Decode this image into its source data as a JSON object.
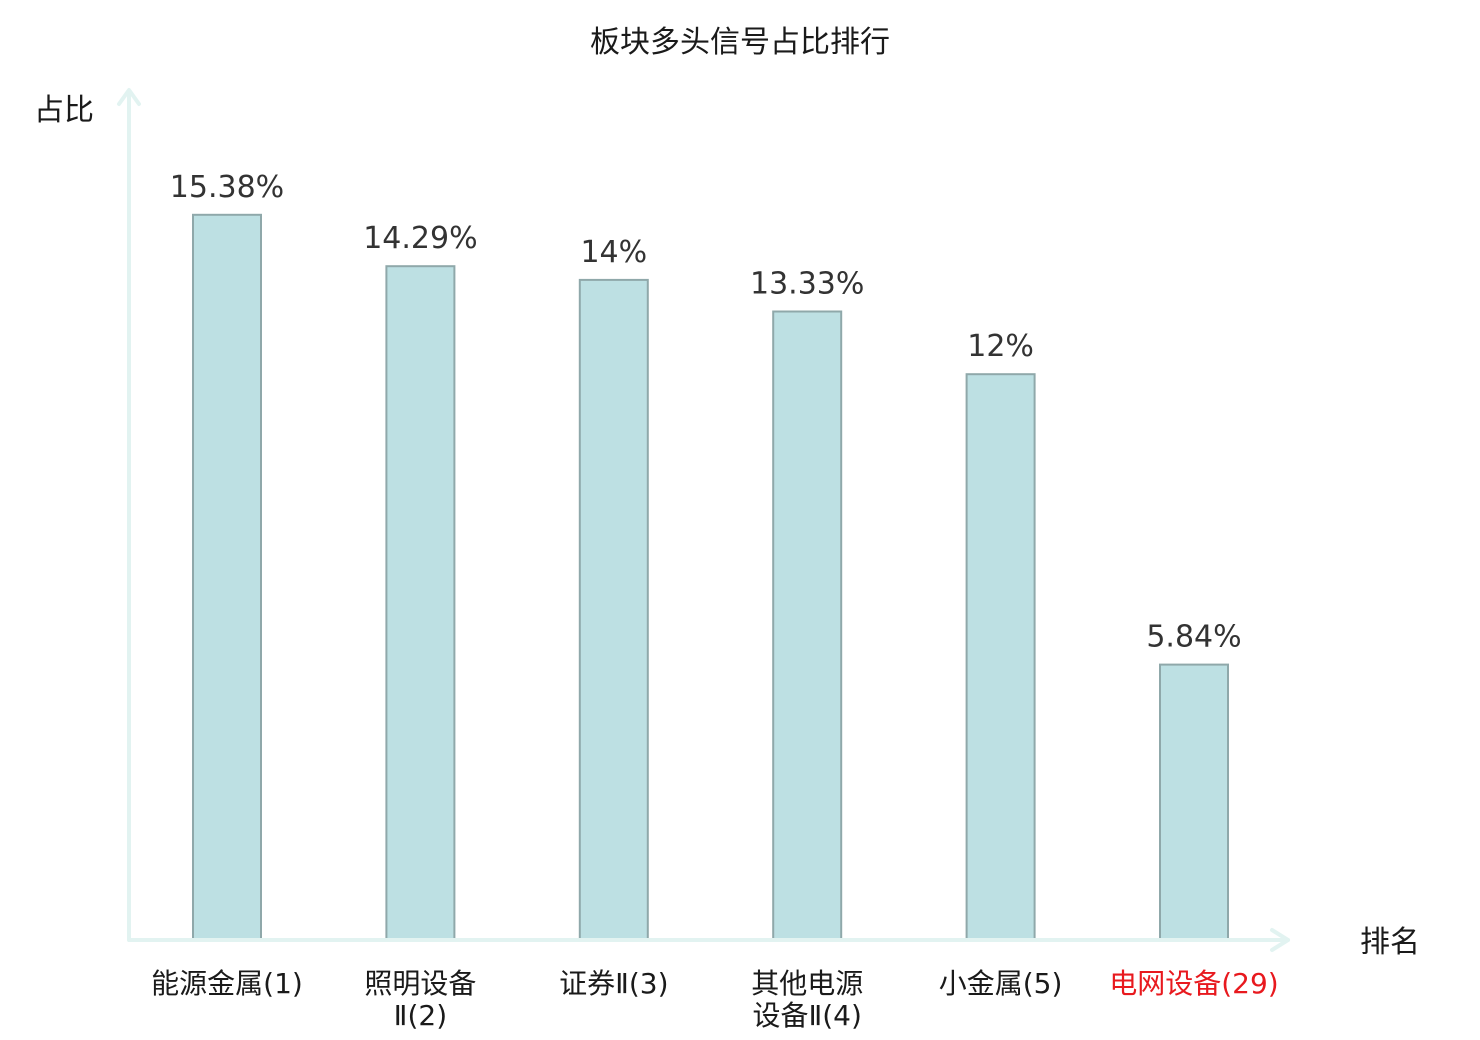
{
  "chart_data": {
    "type": "bar",
    "title": "板块多头信号占比排行",
    "ylabel": "占比",
    "xlabel": "排名",
    "categories": [
      {
        "lines": [
          "能源金属(1)"
        ],
        "highlight": false
      },
      {
        "lines": [
          "照明设备",
          "Ⅱ(2)"
        ],
        "highlight": false
      },
      {
        "lines": [
          "证券Ⅱ(3)"
        ],
        "highlight": false
      },
      {
        "lines": [
          "其他电源",
          "设备Ⅱ(4)"
        ],
        "highlight": false
      },
      {
        "lines": [
          "小金属(5)"
        ],
        "highlight": false
      },
      {
        "lines": [
          "电网设备(29)"
        ],
        "highlight": true
      }
    ],
    "values": [
      15.38,
      14.29,
      14,
      13.33,
      12,
      5.84
    ],
    "value_labels": [
      "15.38%",
      "14.29%",
      "14%",
      "13.33%",
      "12%",
      "5.84%"
    ],
    "ylim": [
      0,
      17
    ],
    "grid": false,
    "legend": "none",
    "colors": {
      "bar_fill": "#bde0e3",
      "bar_stroke": "#8fa8aa",
      "axis": "#e2f3f1",
      "text": "#1a1a1a",
      "value_text": "#333333",
      "highlight_text": "#e8191e"
    }
  }
}
